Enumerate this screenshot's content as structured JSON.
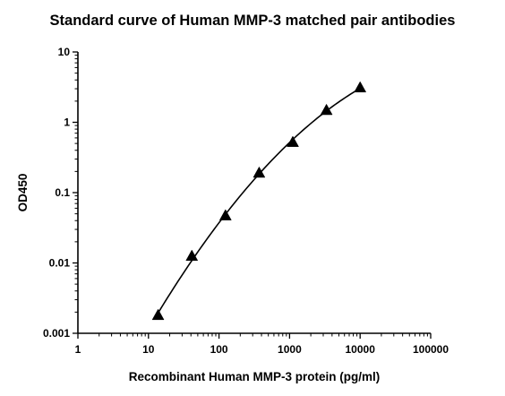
{
  "chart_data": {
    "type": "scatter",
    "title": "Standard curve of Human MMP-3 matched pair antibodies",
    "xlabel": "Recombinant Human MMP-3 protein (pg/ml)",
    "ylabel": "OD450",
    "x_scale": "log",
    "y_scale": "log",
    "xlim": [
      1,
      100000
    ],
    "ylim": [
      0.001,
      10
    ],
    "x_ticks": [
      "1",
      "10",
      "100",
      "1000",
      "10000",
      "100000"
    ],
    "y_ticks": [
      "0.001",
      "0.01",
      "0.1",
      "1",
      "10"
    ],
    "grid": false,
    "legend": "none",
    "marker": "triangle",
    "color": "#000000",
    "series": [
      {
        "x": [
          13.7,
          41.2,
          123.5,
          370.4,
          1111,
          3333,
          10000
        ],
        "y": [
          0.0018,
          0.0125,
          0.047,
          0.19,
          0.52,
          1.48,
          3.1
        ]
      }
    ],
    "fit_curve": true
  }
}
